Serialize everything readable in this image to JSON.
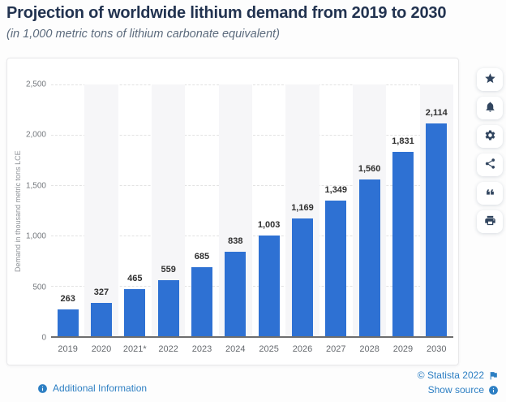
{
  "header": {
    "title": "Projection of worldwide lithium demand from 2019 to 2030",
    "subtitle": "(in 1,000 metric tons of lithium carbonate equivalent)"
  },
  "chart_data": {
    "type": "bar",
    "title": "Projection of worldwide lithium demand from 2019 to 2030",
    "subtitle": "(in 1,000 metric tons of lithium carbonate equivalent)",
    "categories": [
      "2019",
      "2020",
      "2021*",
      "2022",
      "2023",
      "2024",
      "2025",
      "2026",
      "2027",
      "2028",
      "2029",
      "2030"
    ],
    "values": [
      263,
      327,
      465,
      559,
      685,
      838,
      1003,
      1169,
      1349,
      1560,
      1831,
      2114
    ],
    "value_labels": [
      "263",
      "327",
      "465",
      "559",
      "685",
      "838",
      "1,003",
      "1,169",
      "1,349",
      "1,560",
      "1,831",
      "2,114"
    ],
    "xlabel": "",
    "ylabel": "Demand in thousand metric tons LCE",
    "ylim": [
      0,
      2500
    ],
    "yticks": [
      {
        "value": 0,
        "label": "0"
      },
      {
        "value": 500,
        "label": "500"
      },
      {
        "value": 1000,
        "label": "1,000"
      },
      {
        "value": 1500,
        "label": "1,500"
      },
      {
        "value": 2000,
        "label": "2,000"
      },
      {
        "value": 2500,
        "label": "2,500"
      }
    ],
    "grid": true,
    "legend": false,
    "bar_color": "#2e71d3"
  },
  "toolbar": {
    "buttons": [
      {
        "name": "favorite",
        "icon": "star-icon"
      },
      {
        "name": "notifications",
        "icon": "bell-icon"
      },
      {
        "name": "settings",
        "icon": "gear-icon"
      },
      {
        "name": "share",
        "icon": "share-icon"
      },
      {
        "name": "cite",
        "icon": "quote-icon"
      },
      {
        "name": "print",
        "icon": "printer-icon"
      }
    ]
  },
  "footer": {
    "additional_information": "Additional Information",
    "copyright": "© Statista 2022",
    "show_source": "Show source"
  },
  "colors": {
    "bar": "#2e71d3",
    "stripe": "#f6f6f8",
    "link": "#2d7fc3",
    "title": "#223350",
    "baseline": "#6e6e6e"
  }
}
